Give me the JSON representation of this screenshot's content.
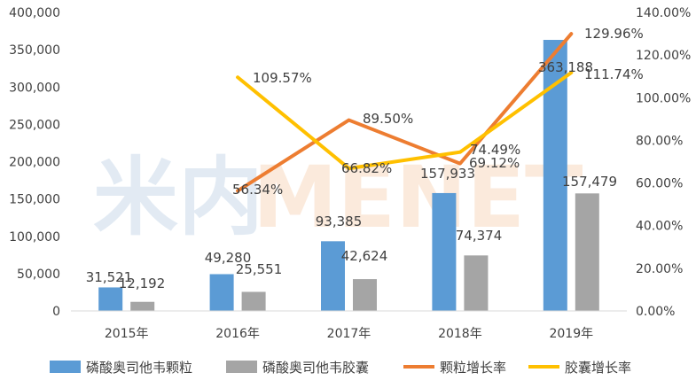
{
  "chart_data": {
    "type": "bar",
    "categories": [
      "2015年",
      "2016年",
      "2017年",
      "2018年",
      "2019年"
    ],
    "series": [
      {
        "name": "磷酸奥司他韦颗粒",
        "kind": "bar",
        "axis": "left",
        "color": "#5b9bd5",
        "values": [
          31521,
          49280,
          93385,
          157933,
          363188
        ],
        "labels": [
          "31,521",
          "49,280",
          "93,385",
          "157,933",
          "363,188"
        ]
      },
      {
        "name": "磷酸奥司他韦胶囊",
        "kind": "bar",
        "axis": "left",
        "color": "#a5a5a5",
        "values": [
          12192,
          25551,
          42624,
          74374,
          157479
        ],
        "labels": [
          "12,192",
          "25,551",
          "42,624",
          "74,374",
          "157,479"
        ]
      },
      {
        "name": "颗粒增长率",
        "kind": "line",
        "axis": "right",
        "color": "#ed7d31",
        "values": [
          null,
          56.34,
          89.5,
          69.12,
          129.96
        ],
        "labels": [
          null,
          "56.34%",
          "89.50%",
          "69.12%",
          "129.96%"
        ]
      },
      {
        "name": "胶囊增长率",
        "kind": "line",
        "axis": "right",
        "color": "#ffc000",
        "values": [
          null,
          109.57,
          66.82,
          74.49,
          111.74
        ],
        "labels": [
          null,
          "109.57%",
          "66.82%",
          "74.49%",
          "111.74%"
        ]
      }
    ],
    "ylim_left": [
      0,
      400000
    ],
    "yticks_left": [
      "0",
      "50,000",
      "100,000",
      "150,000",
      "200,000",
      "250,000",
      "300,000",
      "350,000",
      "400,000"
    ],
    "ylim_right": [
      0,
      140
    ],
    "yticks_right": [
      "0.00%",
      "20.00%",
      "40.00%",
      "60.00%",
      "80.00%",
      "100.00%",
      "120.00%",
      "140.00%"
    ],
    "grid": false,
    "legend_position": "bottom"
  },
  "watermark": {
    "left": "米内",
    "right": "MENET"
  }
}
